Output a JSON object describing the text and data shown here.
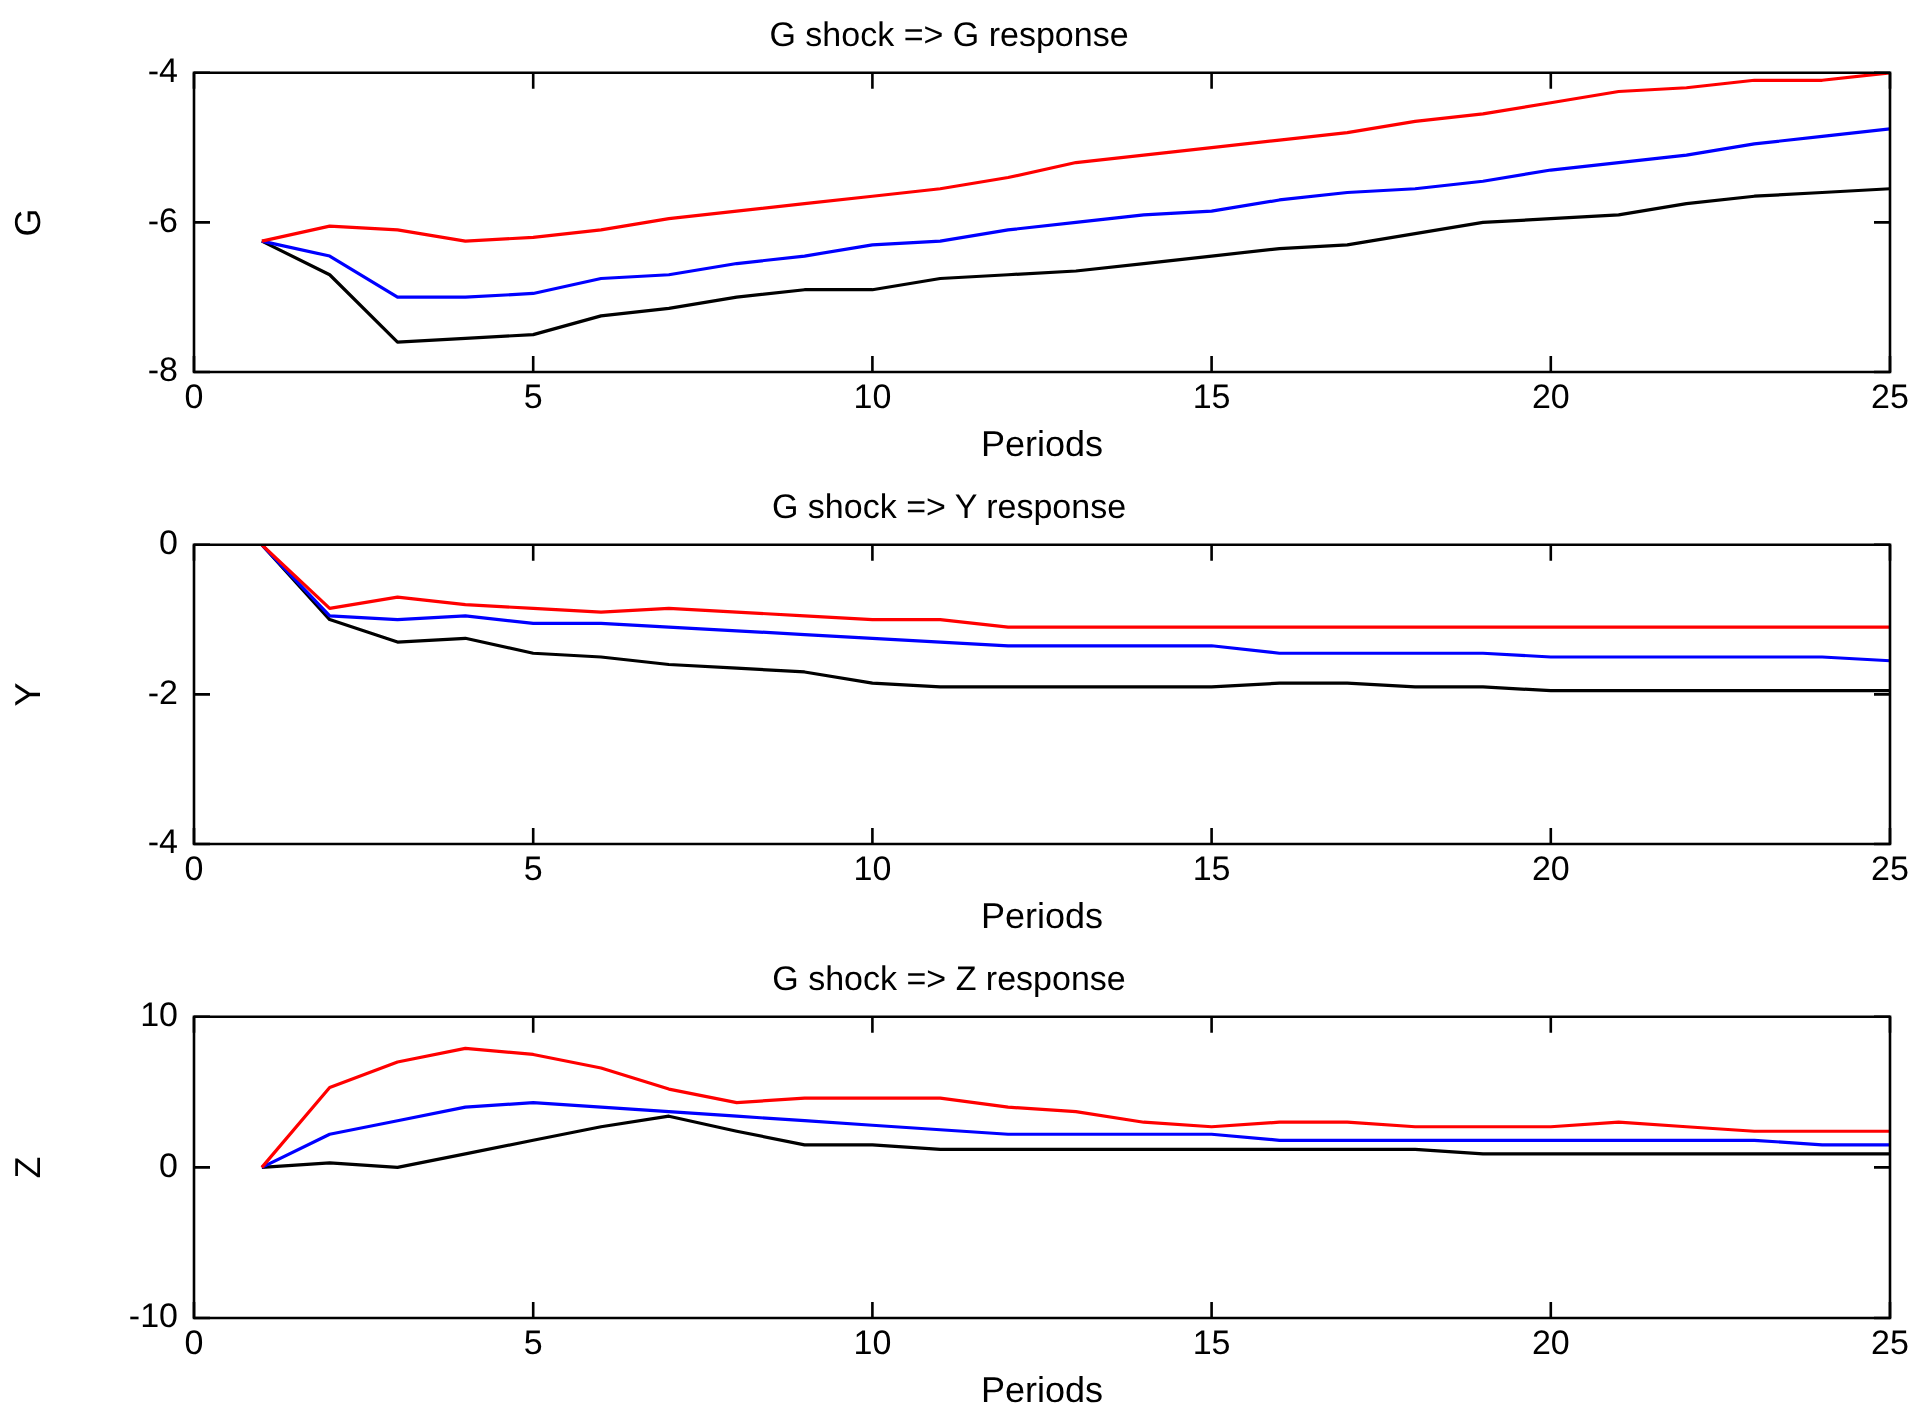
{
  "chart_data": [
    {
      "type": "line",
      "title": "G shock => G response",
      "xlabel": "Periods",
      "ylabel": "G",
      "x": [
        1,
        2,
        3,
        4,
        5,
        6,
        7,
        8,
        9,
        10,
        11,
        12,
        13,
        14,
        15,
        16,
        17,
        18,
        19,
        20,
        21,
        22,
        23,
        24,
        25
      ],
      "xlim": [
        0,
        25
      ],
      "xticks": [
        0,
        5,
        10,
        15,
        20,
        25
      ],
      "ylim": [
        -8,
        -4
      ],
      "yticks": [
        -8,
        -6,
        -4
      ],
      "marker": "none",
      "line_style": "solid",
      "legend": false,
      "series": [
        {
          "color": "#ff0000",
          "values": [
            -6.25,
            -6.05,
            -6.1,
            -6.25,
            -6.2,
            -6.1,
            -5.95,
            -5.85,
            -5.75,
            -5.65,
            -5.55,
            -5.4,
            -5.2,
            -5.1,
            -5.0,
            -4.9,
            -4.8,
            -4.65,
            -4.55,
            -4.4,
            -4.25,
            -4.2,
            -4.1,
            -4.1,
            -4.0
          ]
        },
        {
          "color": "#0000ff",
          "values": [
            -6.25,
            -6.45,
            -7.0,
            -7.0,
            -6.95,
            -6.75,
            -6.7,
            -6.55,
            -6.45,
            -6.3,
            -6.25,
            -6.1,
            -6.0,
            -5.9,
            -5.85,
            -5.7,
            -5.6,
            -5.55,
            -5.45,
            -5.3,
            -5.2,
            -5.1,
            -4.95,
            -4.85,
            -4.75
          ]
        },
        {
          "color": "#000000",
          "values": [
            -6.25,
            -6.7,
            -7.6,
            -7.55,
            -7.5,
            -7.25,
            -7.15,
            -7.0,
            -6.9,
            -6.9,
            -6.75,
            -6.7,
            -6.65,
            -6.55,
            -6.45,
            -6.35,
            -6.3,
            -6.15,
            -6.0,
            -5.95,
            -5.9,
            -5.75,
            -5.65,
            -5.6,
            -5.55
          ]
        }
      ]
    },
    {
      "type": "line",
      "title": "G shock => Y response",
      "xlabel": "Periods",
      "ylabel": "Y",
      "x": [
        1,
        2,
        3,
        4,
        5,
        6,
        7,
        8,
        9,
        10,
        11,
        12,
        13,
        14,
        15,
        16,
        17,
        18,
        19,
        20,
        21,
        22,
        23,
        24,
        25
      ],
      "xlim": [
        0,
        25
      ],
      "xticks": [
        0,
        5,
        10,
        15,
        20,
        25
      ],
      "ylim": [
        -4,
        0
      ],
      "yticks": [
        -4,
        -2,
        0
      ],
      "marker": "none",
      "line_style": "solid",
      "legend": false,
      "series": [
        {
          "color": "#ff0000",
          "values": [
            0,
            -0.85,
            -0.7,
            -0.8,
            -0.85,
            -0.9,
            -0.85,
            -0.9,
            -0.95,
            -1.0,
            -1.0,
            -1.1,
            -1.1,
            -1.1,
            -1.1,
            -1.1,
            -1.1,
            -1.1,
            -1.1,
            -1.1,
            -1.1,
            -1.1,
            -1.1,
            -1.1,
            -1.1
          ]
        },
        {
          "color": "#0000ff",
          "values": [
            0,
            -0.95,
            -1.0,
            -0.95,
            -1.05,
            -1.05,
            -1.1,
            -1.15,
            -1.2,
            -1.25,
            -1.3,
            -1.35,
            -1.35,
            -1.35,
            -1.35,
            -1.45,
            -1.45,
            -1.45,
            -1.45,
            -1.5,
            -1.5,
            -1.5,
            -1.5,
            -1.5,
            -1.55
          ]
        },
        {
          "color": "#000000",
          "values": [
            0,
            -1.0,
            -1.3,
            -1.25,
            -1.45,
            -1.5,
            -1.6,
            -1.65,
            -1.7,
            -1.85,
            -1.9,
            -1.9,
            -1.9,
            -1.9,
            -1.9,
            -1.85,
            -1.85,
            -1.9,
            -1.9,
            -1.95,
            -1.95,
            -1.95,
            -1.95,
            -1.95,
            -1.95
          ]
        }
      ]
    },
    {
      "type": "line",
      "title": "G shock => Z response",
      "xlabel": "Periods",
      "ylabel": "Z",
      "x": [
        1,
        2,
        3,
        4,
        5,
        6,
        7,
        8,
        9,
        10,
        11,
        12,
        13,
        14,
        15,
        16,
        17,
        18,
        19,
        20,
        21,
        22,
        23,
        24,
        25
      ],
      "xlim": [
        0,
        25
      ],
      "xticks": [
        0,
        5,
        10,
        15,
        20,
        25
      ],
      "ylim": [
        -10,
        10
      ],
      "yticks": [
        -10,
        0,
        10
      ],
      "marker": "none",
      "line_style": "solid",
      "legend": false,
      "series": [
        {
          "color": "#ff0000",
          "values": [
            0,
            5.3,
            7,
            7.9,
            7.5,
            6.6,
            5.2,
            4.3,
            4.6,
            4.6,
            4.6,
            4.0,
            3.7,
            3.0,
            2.7,
            3.0,
            3.0,
            2.7,
            2.7,
            2.7,
            3.0,
            2.7,
            2.4,
            2.4,
            2.4
          ]
        },
        {
          "color": "#0000ff",
          "values": [
            0,
            2.2,
            3.1,
            4.0,
            4.3,
            4.0,
            3.7,
            3.4,
            3.1,
            2.8,
            2.5,
            2.2,
            2.2,
            2.2,
            2.2,
            1.8,
            1.8,
            1.8,
            1.8,
            1.8,
            1.8,
            1.8,
            1.8,
            1.5,
            1.5
          ]
        },
        {
          "color": "#000000",
          "values": [
            0,
            0.3,
            0,
            0.9,
            1.8,
            2.7,
            3.4,
            2.4,
            1.5,
            1.5,
            1.2,
            1.2,
            1.2,
            1.2,
            1.2,
            1.2,
            1.2,
            1.2,
            0.9,
            0.9,
            0.9,
            0.9,
            0.9,
            0.9,
            0.9
          ]
        }
      ]
    }
  ]
}
